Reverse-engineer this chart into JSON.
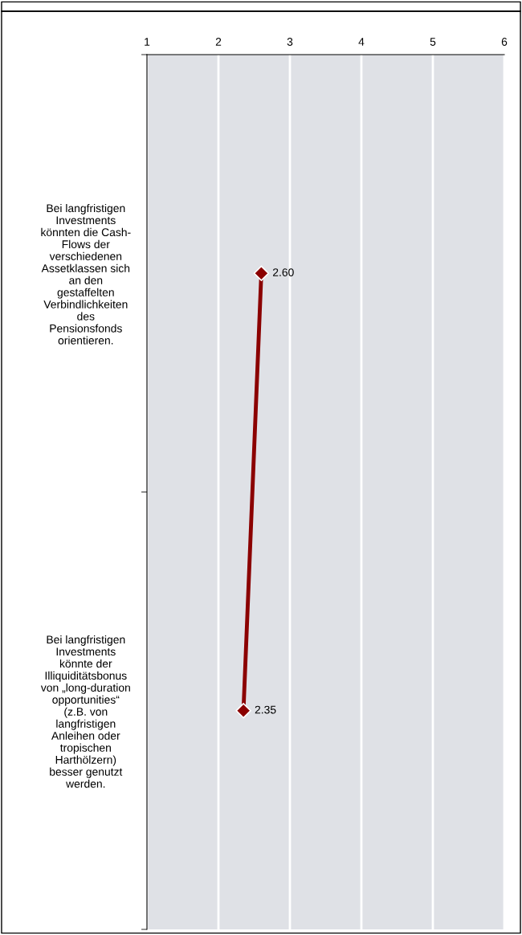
{
  "chart_data": {
    "type": "line",
    "orientation": "horizontal",
    "categories": [
      "Bei langfristigen\nInvestments\nkönnten die Cash-\nFlows der\nverschiedenen\nAssetklassen sich\nan den\ngestaffelten\nVerbindlichkeiten\ndes\nPensionsfonds\norientieren.",
      "Bei langfristigen\nInvestments\nkönnte der\nIlliquiditätsbonus\nvon „long-duration\nopportunities“\n(z.B. von\nlangfristigen\nAnleihen oder\ntropischen\nHarthölzern)\nbesser genutzt\nwerden."
    ],
    "series": [
      {
        "color": "#8b0000",
        "values": [
          2.6,
          2.35
        ],
        "value_labels": [
          "2.60",
          "2.35"
        ]
      }
    ],
    "xlim": [
      1,
      6
    ],
    "xticks": [
      1,
      2,
      3,
      4,
      5,
      6
    ],
    "grid": "x",
    "marker": "diamond",
    "line_style": "solid",
    "legend": false
  }
}
